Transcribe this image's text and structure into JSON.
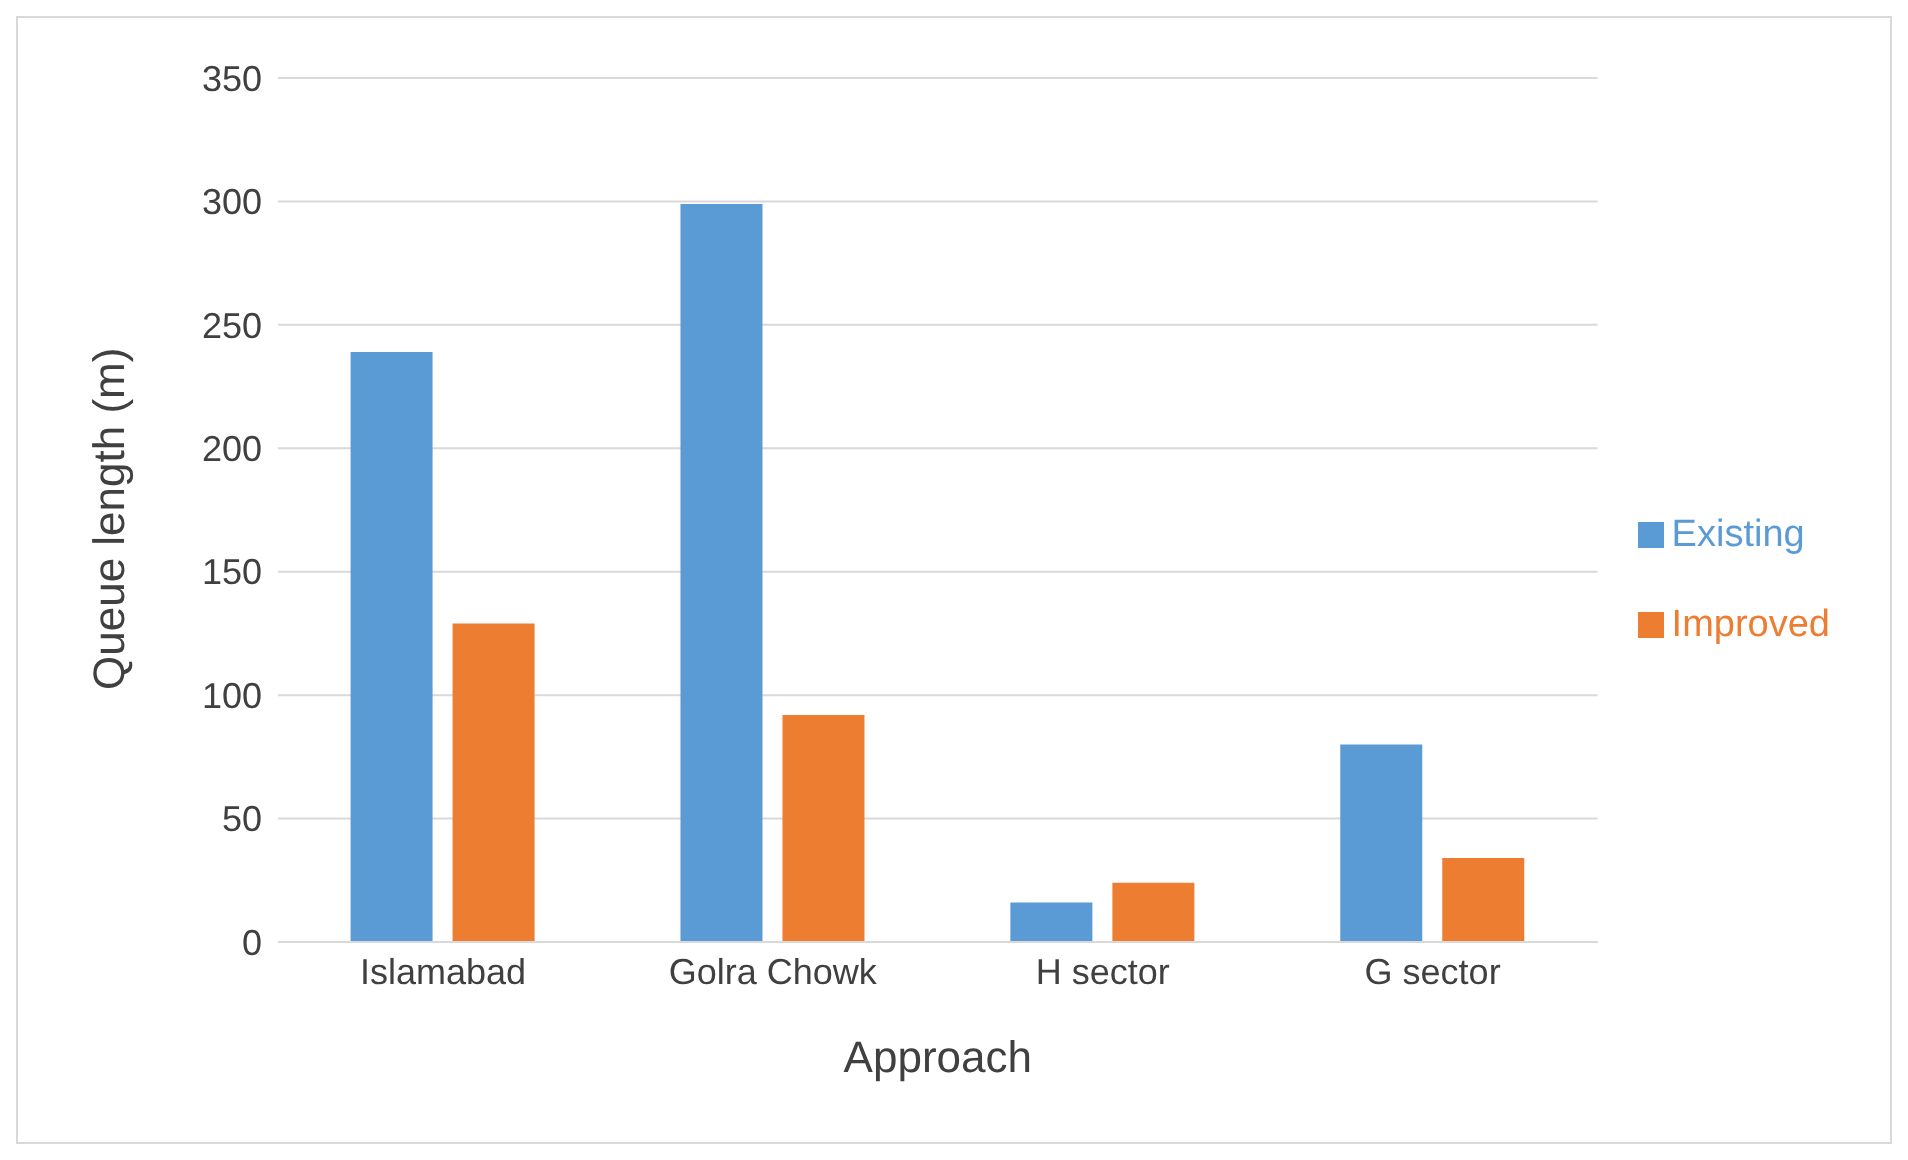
{
  "chart_data": {
    "type": "bar",
    "xlabel": "Approach",
    "ylabel": "Queue length (m)",
    "categories": [
      "Islamabad",
      "Golra Chowk",
      "H sector",
      "G sector"
    ],
    "series": [
      {
        "name": "Existing",
        "color": "#5b9bd5",
        "values": [
          239,
          299,
          16,
          80
        ]
      },
      {
        "name": "Improved",
        "color": "#ed7d31",
        "values": [
          129,
          92,
          24,
          34
        ]
      }
    ],
    "ylim": [
      0,
      350
    ],
    "yticks": [
      0,
      50,
      100,
      150,
      200,
      250,
      300,
      350
    ],
    "grid": "y",
    "legend": "right"
  }
}
